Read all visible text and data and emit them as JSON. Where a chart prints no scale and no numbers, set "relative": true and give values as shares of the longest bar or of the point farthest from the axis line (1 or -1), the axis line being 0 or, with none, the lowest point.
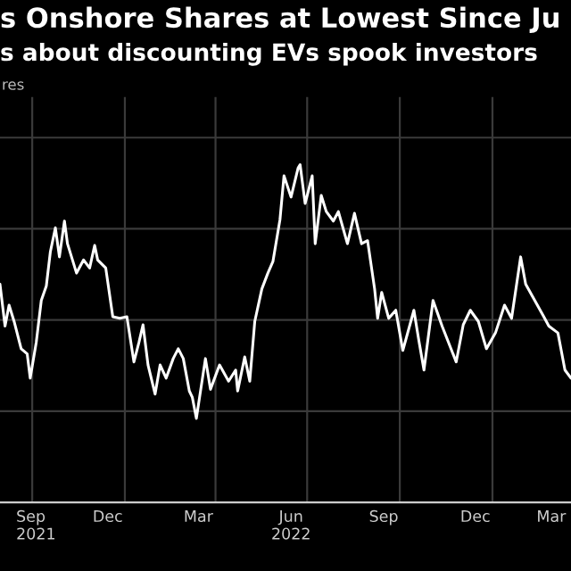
{
  "chart_data": {
    "type": "line",
    "title": "s Onshore Shares at Lowest Since Ju",
    "subtitle": "s about discounting EVs spook investors",
    "annotations": [
      "res"
    ],
    "relative": true,
    "grid": true,
    "legend": false,
    "marker": "none",
    "line_style": "solid",
    "x": [
      "2021-08-30",
      "2021-09-04",
      "2021-09-08",
      "2021-09-13",
      "2021-09-20",
      "2021-09-26",
      "2021-09-29",
      "2021-10-05",
      "2021-10-10",
      "2021-10-15",
      "2021-10-19",
      "2021-10-24",
      "2021-10-28",
      "2021-11-02",
      "2021-11-05",
      "2021-11-14",
      "2021-11-21",
      "2021-11-27",
      "2021-12-02",
      "2021-12-05",
      "2021-12-13",
      "2021-12-20",
      "2021-12-27",
      "2022-01-03",
      "2022-01-10",
      "2022-01-15",
      "2022-01-19",
      "2022-01-24",
      "2022-01-31",
      "2022-02-05",
      "2022-02-11",
      "2022-02-18",
      "2022-02-23",
      "2022-02-28",
      "2022-03-06",
      "2022-03-09",
      "2022-03-13",
      "2022-03-22",
      "2022-03-27",
      "2022-04-05",
      "2022-04-14",
      "2022-04-21",
      "2022-04-23",
      "2022-04-30",
      "2022-05-05",
      "2022-05-10",
      "2022-05-17",
      "2022-05-23",
      "2022-05-28",
      "2022-06-04",
      "2022-06-08",
      "2022-06-15",
      "2022-06-22",
      "2022-06-24",
      "2022-06-29",
      "2022-07-06",
      "2022-07-09",
      "2022-07-15",
      "2022-07-20",
      "2022-07-27",
      "2022-08-01",
      "2022-08-10",
      "2022-08-17",
      "2022-08-24",
      "2022-08-30",
      "2022-09-06",
      "2022-09-09",
      "2022-09-13",
      "2022-09-20",
      "2022-09-27",
      "2022-10-04",
      "2022-10-15",
      "2022-10-20",
      "2022-10-25",
      "2022-11-03",
      "2022-11-12",
      "2022-11-26",
      "2022-12-03",
      "2022-12-10",
      "2022-12-18",
      "2022-12-26",
      "2023-01-04",
      "2023-01-13",
      "2023-01-20",
      "2023-01-29",
      "2023-02-03",
      "2023-02-12",
      "2023-02-21",
      "2023-02-26",
      "2023-03-07",
      "2023-03-14",
      "2023-03-20"
    ],
    "series": [
      {
        "color": "#ffffff",
        "values": [
          0.646,
          0.522,
          0.584,
          0.536,
          0.455,
          0.44,
          0.368,
          0.474,
          0.598,
          0.641,
          0.742,
          0.813,
          0.727,
          0.833,
          0.766,
          0.679,
          0.718,
          0.694,
          0.761,
          0.718,
          0.694,
          0.55,
          0.545,
          0.55,
          0.416,
          0.474,
          0.526,
          0.407,
          0.321,
          0.407,
          0.368,
          0.426,
          0.455,
          0.426,
          0.33,
          0.311,
          0.249,
          0.426,
          0.335,
          0.407,
          0.359,
          0.392,
          0.33,
          0.431,
          0.359,
          0.536,
          0.632,
          0.679,
          0.713,
          0.837,
          0.967,
          0.904,
          0.99,
          1.0,
          0.885,
          0.967,
          0.766,
          0.909,
          0.861,
          0.833,
          0.861,
          0.766,
          0.856,
          0.766,
          0.775,
          0.632,
          0.545,
          0.622,
          0.545,
          0.569,
          0.45,
          0.569,
          0.478,
          0.392,
          0.598,
          0.522,
          0.416,
          0.526,
          0.569,
          0.536,
          0.455,
          0.502,
          0.584,
          0.545,
          0.727,
          0.646,
          0.598,
          0.55,
          0.522,
          0.502,
          0.392,
          0.368
        ]
      }
    ],
    "xlim": [
      "2021-08-30",
      "2023-03-20"
    ],
    "xticks": [
      {
        "value": "2021-09-15",
        "label": "Sep\n2021"
      },
      {
        "value": "2021-10-01",
        "label": null
      },
      {
        "value": "2021-12-15",
        "label": "Dec"
      },
      {
        "value": "2022-01-01",
        "label": null
      },
      {
        "value": "2022-03-15",
        "label": "Mar"
      },
      {
        "value": "2022-04-01",
        "label": null
      },
      {
        "value": "2022-06-15",
        "label": "Jun\n2022"
      },
      {
        "value": "2022-07-01",
        "label": null
      },
      {
        "value": "2022-09-15",
        "label": "Sep"
      },
      {
        "value": "2022-10-01",
        "label": null
      },
      {
        "value": "2022-12-15",
        "label": "Dec"
      },
      {
        "value": "2023-01-01",
        "label": null
      },
      {
        "value": "2023-03-15",
        "label": "Mar"
      }
    ]
  }
}
